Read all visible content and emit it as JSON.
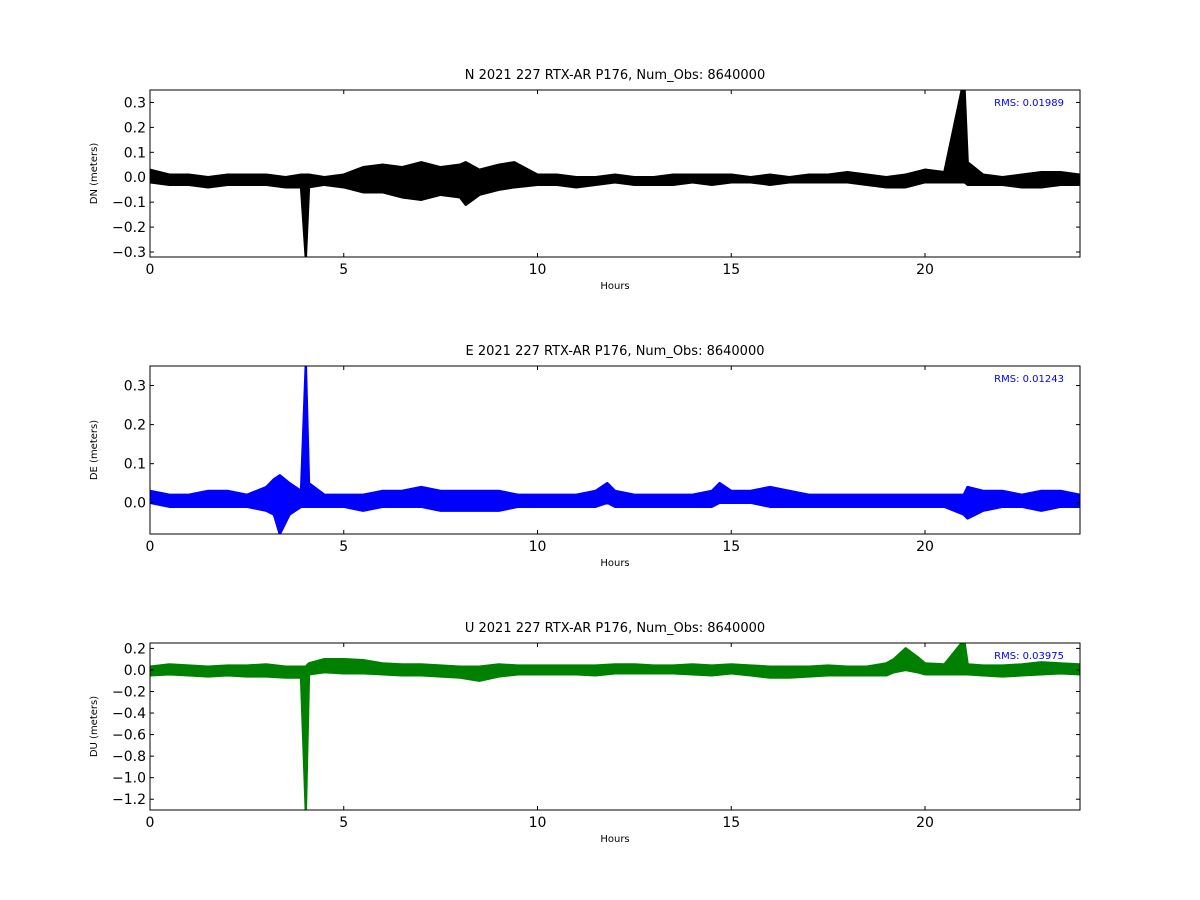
{
  "chart_data": [
    {
      "type": "line",
      "title": "N 2021 227 RTX-AR  P176, Num_Obs: 8640000",
      "xlabel": "Hours",
      "ylabel": "DN (meters)",
      "xlim": [
        0,
        24
      ],
      "ylim": [
        -0.32,
        0.35
      ],
      "xticks": [
        0,
        5,
        10,
        15,
        20
      ],
      "yticks": [
        0.3,
        0.2,
        0.1,
        0.0,
        -0.1,
        -0.2,
        -0.3
      ],
      "ytick_labels": [
        "0.3",
        "0.2",
        "0.1",
        "0.0",
        "−0.1",
        "−0.2",
        "−0.3"
      ],
      "grid": false,
      "annotation": "RMS:  0.01989",
      "annotation_color": "#0000ff",
      "color": "#000000",
      "series": [
        {
          "x": [
            0,
            0.5,
            1,
            1.5,
            2,
            2.5,
            3,
            3.5,
            3.9,
            4.02,
            4.1,
            4.5,
            5,
            5.5,
            6,
            6.5,
            7,
            7.5,
            8,
            8.15,
            8.5,
            9,
            9.4,
            10,
            10.5,
            11,
            11.5,
            12,
            12.5,
            13,
            13.5,
            14,
            14.5,
            15,
            15.5,
            16,
            16.5,
            17,
            17.5,
            18,
            18.5,
            19,
            19.5,
            20,
            20.5,
            20.95,
            21.02,
            21.1,
            21.5,
            22,
            22.5,
            23,
            23.5,
            24
          ],
          "y_upper": [
            0.03,
            0.01,
            0.01,
            0.0,
            0.01,
            0.01,
            0.01,
            0.0,
            0.01,
            0.01,
            0.01,
            0.0,
            0.01,
            0.04,
            0.05,
            0.04,
            0.06,
            0.04,
            0.05,
            0.06,
            0.03,
            0.05,
            0.06,
            0.01,
            0.01,
            0.0,
            0.0,
            0.01,
            0.0,
            0.0,
            0.01,
            0.01,
            0.01,
            0.01,
            0.0,
            0.01,
            0.0,
            0.01,
            0.01,
            0.02,
            0.01,
            0.0,
            0.01,
            0.03,
            0.02,
            0.35,
            0.35,
            0.06,
            0.01,
            0.0,
            0.01,
            0.02,
            0.02,
            0.01
          ],
          "y_lower": [
            -0.02,
            -0.03,
            -0.03,
            -0.04,
            -0.03,
            -0.03,
            -0.03,
            -0.04,
            -0.04,
            -0.32,
            -0.04,
            -0.03,
            -0.04,
            -0.06,
            -0.06,
            -0.08,
            -0.09,
            -0.07,
            -0.08,
            -0.11,
            -0.07,
            -0.05,
            -0.04,
            -0.03,
            -0.03,
            -0.04,
            -0.03,
            -0.02,
            -0.03,
            -0.03,
            -0.03,
            -0.02,
            -0.03,
            -0.02,
            -0.02,
            -0.03,
            -0.02,
            -0.02,
            -0.02,
            -0.02,
            -0.03,
            -0.04,
            -0.04,
            -0.02,
            -0.02,
            -0.02,
            -0.02,
            -0.03,
            -0.03,
            -0.03,
            -0.04,
            -0.04,
            -0.03,
            -0.03
          ]
        }
      ]
    },
    {
      "type": "line",
      "title": "E 2021 227 RTX-AR  P176, Num_Obs: 8640000",
      "xlabel": "Hours",
      "ylabel": "DE (meters)",
      "xlim": [
        0,
        24
      ],
      "ylim": [
        -0.08,
        0.35
      ],
      "xticks": [
        0,
        5,
        10,
        15,
        20
      ],
      "yticks": [
        0.3,
        0.2,
        0.1,
        0.0
      ],
      "ytick_labels": [
        "0.3",
        "0.2",
        "0.1",
        "0.0"
      ],
      "grid": false,
      "annotation": "RMS:  0.01243",
      "annotation_color": "#0000ff",
      "color": "#0000ff",
      "series": [
        {
          "x": [
            0,
            0.5,
            1,
            1.5,
            2,
            2.5,
            3,
            3.2,
            3.35,
            3.6,
            3.9,
            4.02,
            4.1,
            4.5,
            5,
            5.5,
            6,
            6.5,
            7,
            7.5,
            8,
            8.5,
            9,
            9.5,
            10,
            10.5,
            11,
            11.5,
            11.8,
            12,
            12.5,
            13,
            13.5,
            14,
            14.5,
            14.7,
            15,
            15.5,
            16,
            16.5,
            17,
            17.5,
            18,
            18.5,
            19,
            19.5,
            20,
            20.5,
            21,
            21.1,
            21.5,
            22,
            22.5,
            23,
            23.5,
            24
          ],
          "y_upper": [
            0.03,
            0.02,
            0.02,
            0.03,
            0.03,
            0.02,
            0.04,
            0.06,
            0.07,
            0.05,
            0.03,
            0.35,
            0.05,
            0.02,
            0.02,
            0.02,
            0.03,
            0.03,
            0.04,
            0.03,
            0.03,
            0.03,
            0.03,
            0.02,
            0.02,
            0.02,
            0.02,
            0.03,
            0.05,
            0.03,
            0.02,
            0.02,
            0.02,
            0.02,
            0.03,
            0.05,
            0.03,
            0.03,
            0.04,
            0.03,
            0.02,
            0.02,
            0.02,
            0.02,
            0.02,
            0.02,
            0.02,
            0.02,
            0.02,
            0.04,
            0.03,
            0.03,
            0.02,
            0.03,
            0.03,
            0.02
          ],
          "y_lower": [
            0.0,
            -0.01,
            -0.01,
            -0.01,
            -0.01,
            -0.01,
            -0.02,
            -0.03,
            -0.08,
            -0.03,
            -0.01,
            -0.01,
            -0.01,
            -0.01,
            -0.01,
            -0.02,
            -0.01,
            -0.01,
            -0.01,
            -0.02,
            -0.02,
            -0.02,
            -0.02,
            -0.01,
            -0.01,
            -0.01,
            -0.01,
            -0.01,
            0.0,
            -0.01,
            -0.01,
            -0.01,
            -0.01,
            -0.01,
            -0.01,
            0.0,
            0.0,
            0.0,
            -0.01,
            -0.01,
            -0.01,
            -0.01,
            -0.01,
            -0.01,
            -0.01,
            -0.01,
            -0.01,
            -0.01,
            -0.03,
            -0.04,
            -0.02,
            -0.01,
            -0.01,
            -0.02,
            -0.01,
            -0.01
          ]
        }
      ]
    },
    {
      "type": "line",
      "title": "U 2021 227 RTX-AR  P176, Num_Obs: 8640000",
      "xlabel": "Hours",
      "ylabel": "DU (meters)",
      "xlim": [
        0,
        24
      ],
      "ylim": [
        -1.3,
        0.25
      ],
      "xticks": [
        0,
        5,
        10,
        15,
        20
      ],
      "yticks": [
        0.2,
        0.0,
        -0.2,
        -0.4,
        -0.6,
        -0.8,
        -1.0,
        -1.2
      ],
      "ytick_labels": [
        "0.2",
        "0.0",
        "−0.2",
        "−0.4",
        "−0.6",
        "−0.8",
        "−1.0",
        "−1.2"
      ],
      "grid": false,
      "annotation": "RMS:  0.03975",
      "annotation_color": "#0000ff",
      "color": "#008000",
      "series": [
        {
          "x": [
            0,
            0.5,
            1,
            1.5,
            2,
            2.5,
            3,
            3.5,
            3.9,
            4.02,
            4.1,
            4.5,
            5,
            5.5,
            6,
            6.5,
            7,
            7.5,
            8,
            8.5,
            9,
            9.5,
            10,
            10.5,
            11,
            11.5,
            12,
            12.5,
            13,
            13.5,
            14,
            14.5,
            15,
            15.5,
            16,
            16.5,
            17,
            17.5,
            18,
            18.5,
            19,
            19.2,
            19.5,
            19.8,
            20,
            20.5,
            20.95,
            21.02,
            21.1,
            21.5,
            22,
            22.5,
            23,
            23.5,
            24
          ],
          "y_upper": [
            0.03,
            0.05,
            0.04,
            0.03,
            0.04,
            0.04,
            0.05,
            0.03,
            0.03,
            0.03,
            0.06,
            0.1,
            0.1,
            0.09,
            0.06,
            0.05,
            0.05,
            0.04,
            0.03,
            0.03,
            0.05,
            0.04,
            0.04,
            0.04,
            0.04,
            0.04,
            0.05,
            0.05,
            0.04,
            0.04,
            0.05,
            0.04,
            0.05,
            0.04,
            0.03,
            0.03,
            0.03,
            0.04,
            0.03,
            0.03,
            0.06,
            0.1,
            0.2,
            0.12,
            0.06,
            0.05,
            0.25,
            0.25,
            0.05,
            0.04,
            0.04,
            0.05,
            0.07,
            0.06,
            0.05
          ],
          "y_lower": [
            -0.05,
            -0.04,
            -0.05,
            -0.06,
            -0.05,
            -0.06,
            -0.06,
            -0.07,
            -0.07,
            -1.3,
            -0.04,
            -0.02,
            -0.03,
            -0.03,
            -0.04,
            -0.05,
            -0.05,
            -0.06,
            -0.07,
            -0.1,
            -0.06,
            -0.04,
            -0.04,
            -0.04,
            -0.04,
            -0.05,
            -0.03,
            -0.03,
            -0.03,
            -0.03,
            -0.04,
            -0.05,
            -0.03,
            -0.05,
            -0.07,
            -0.07,
            -0.06,
            -0.05,
            -0.05,
            -0.05,
            -0.05,
            -0.02,
            0.0,
            -0.02,
            -0.04,
            -0.04,
            -0.04,
            -0.04,
            -0.04,
            -0.05,
            -0.06,
            -0.05,
            -0.04,
            -0.03,
            -0.04
          ]
        }
      ]
    }
  ]
}
